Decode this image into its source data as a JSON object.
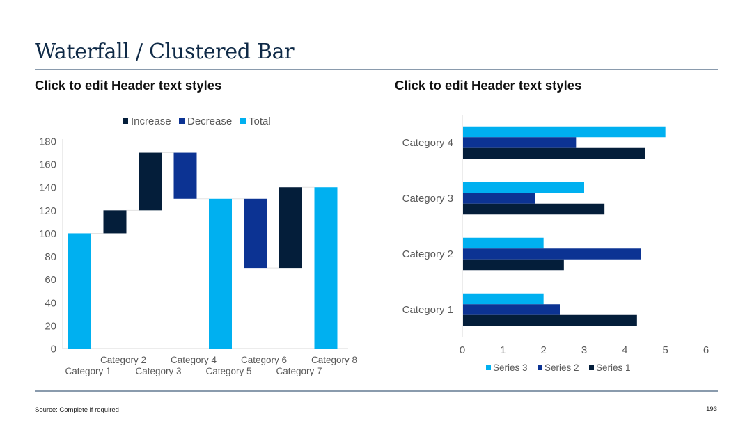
{
  "slide": {
    "title": "Waterfall / Clustered Bar",
    "left_header": "Click to edit Header text styles",
    "right_header": "Click to edit Header text styles",
    "footer_source": "Source: Complete if required",
    "page_number": "193"
  },
  "colors": {
    "increase": "#041e3a",
    "decrease": "#0c3393",
    "total": "#00b0f0",
    "series1": "#041e3a",
    "series2": "#0c3393",
    "series3": "#00b0f0",
    "title": "#0f2a47",
    "rule": "#8a9bad",
    "axis_text": "#595959"
  },
  "chart_data": [
    {
      "type": "bar",
      "subtype": "waterfall",
      "title": "",
      "xlabel": "",
      "ylabel": "",
      "ylim": [
        0,
        180
      ],
      "yticks": [
        0,
        20,
        40,
        60,
        80,
        100,
        120,
        140,
        160,
        180
      ],
      "grid": false,
      "legend": {
        "position": "top",
        "entries": [
          "Increase",
          "Decrease",
          "Total"
        ]
      },
      "categories": [
        "Category 1",
        "Category 2",
        "Category 3",
        "Category 4",
        "Category 5",
        "Category 6",
        "Category 7",
        "Category 8"
      ],
      "bars": [
        {
          "category": "Category 1",
          "kind": "Total",
          "start": 0,
          "end": 100
        },
        {
          "category": "Category 2",
          "kind": "Increase",
          "start": 100,
          "end": 120
        },
        {
          "category": "Category 3",
          "kind": "Increase",
          "start": 120,
          "end": 170
        },
        {
          "category": "Category 4",
          "kind": "Decrease",
          "start": 170,
          "end": 130
        },
        {
          "category": "Category 5",
          "kind": "Total",
          "start": 0,
          "end": 130
        },
        {
          "category": "Category 6",
          "kind": "Decrease",
          "start": 130,
          "end": 70
        },
        {
          "category": "Category 7",
          "kind": "Increase",
          "start": 70,
          "end": 140
        },
        {
          "category": "Category 8",
          "kind": "Total",
          "start": 0,
          "end": 140
        }
      ],
      "series": [
        {
          "name": "Increase",
          "values": [
            null,
            20,
            50,
            null,
            null,
            null,
            70,
            null
          ]
        },
        {
          "name": "Decrease",
          "values": [
            null,
            null,
            null,
            -40,
            null,
            -60,
            null,
            null
          ]
        },
        {
          "name": "Total",
          "values": [
            100,
            null,
            null,
            null,
            130,
            null,
            null,
            140
          ]
        }
      ]
    },
    {
      "type": "bar",
      "subtype": "clustered-horizontal",
      "title": "",
      "xlabel": "",
      "ylabel": "",
      "xlim": [
        0,
        6
      ],
      "xticks": [
        0,
        1,
        2,
        3,
        4,
        5,
        6
      ],
      "grid": false,
      "legend": {
        "position": "bottom",
        "entries": [
          "Series 3",
          "Series 2",
          "Series 1"
        ]
      },
      "categories": [
        "Category 1",
        "Category 2",
        "Category 3",
        "Category 4"
      ],
      "series": [
        {
          "name": "Series 1",
          "values": [
            4.3,
            2.5,
            3.5,
            4.5
          ]
        },
        {
          "name": "Series 2",
          "values": [
            2.4,
            4.4,
            1.8,
            2.8
          ]
        },
        {
          "name": "Series 3",
          "values": [
            2.0,
            2.0,
            3.0,
            5.0
          ]
        }
      ]
    }
  ]
}
